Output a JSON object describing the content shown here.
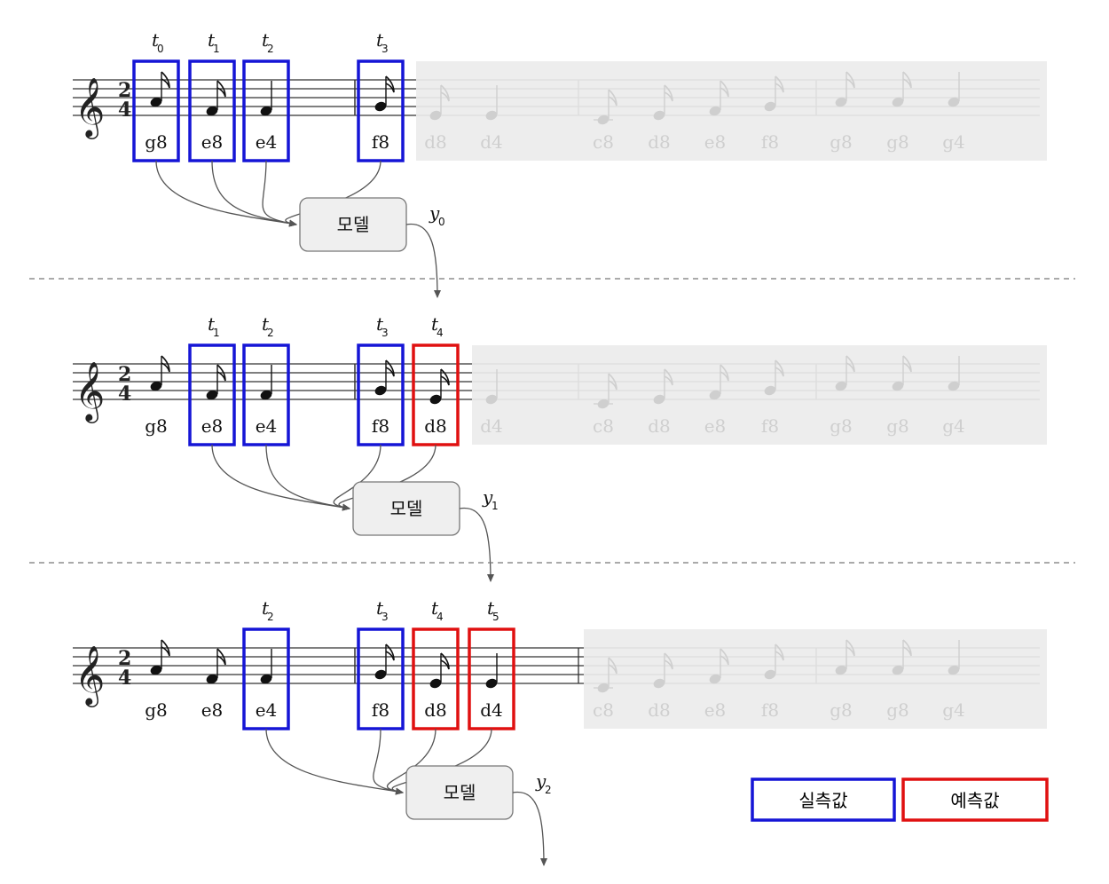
{
  "model_label": "모델",
  "legend": {
    "observed": {
      "label": "실측값",
      "color": "#1515d6"
    },
    "predicted": {
      "label": "예측값",
      "color": "#e01010"
    }
  },
  "notes": [
    {
      "label": "g8",
      "pitch": "g4",
      "dur": "8"
    },
    {
      "label": "e8",
      "pitch": "e4",
      "dur": "8"
    },
    {
      "label": "e4",
      "pitch": "e4",
      "dur": "4"
    },
    {
      "label": "f8",
      "pitch": "f4",
      "dur": "8"
    },
    {
      "label": "d8",
      "pitch": "d4",
      "dur": "8"
    },
    {
      "label": "d4",
      "pitch": "d4",
      "dur": "4"
    },
    {
      "label": "c8",
      "pitch": "c4",
      "dur": "8"
    },
    {
      "label": "d8",
      "pitch": "d4",
      "dur": "8"
    },
    {
      "label": "e8",
      "pitch": "e4",
      "dur": "8"
    },
    {
      "label": "f8",
      "pitch": "f4",
      "dur": "8"
    },
    {
      "label": "g8",
      "pitch": "g4",
      "dur": "8"
    },
    {
      "label": "g8",
      "pitch": "g4",
      "dur": "8"
    },
    {
      "label": "g4",
      "pitch": "g4",
      "dur": "4"
    }
  ],
  "time_signature": {
    "top": "2",
    "bottom": "4"
  },
  "steps": [
    {
      "windows": [
        {
          "note": 0,
          "t": "t",
          "sub": "0",
          "kind": "observed"
        },
        {
          "note": 1,
          "t": "t",
          "sub": "1",
          "kind": "observed"
        },
        {
          "note": 2,
          "t": "t",
          "sub": "2",
          "kind": "observed"
        },
        {
          "note": 3,
          "t": "t",
          "sub": "3",
          "kind": "observed"
        }
      ],
      "faded_from": 4,
      "output": {
        "y": "y",
        "sub": "0"
      }
    },
    {
      "windows": [
        {
          "note": 1,
          "t": "t",
          "sub": "1",
          "kind": "observed"
        },
        {
          "note": 2,
          "t": "t",
          "sub": "2",
          "kind": "observed"
        },
        {
          "note": 3,
          "t": "t",
          "sub": "3",
          "kind": "observed"
        },
        {
          "note": 4,
          "t": "t",
          "sub": "4",
          "kind": "predicted"
        }
      ],
      "faded_from": 5,
      "output": {
        "y": "y",
        "sub": "1"
      }
    },
    {
      "windows": [
        {
          "note": 2,
          "t": "t",
          "sub": "2",
          "kind": "observed"
        },
        {
          "note": 3,
          "t": "t",
          "sub": "3",
          "kind": "observed"
        },
        {
          "note": 4,
          "t": "t",
          "sub": "4",
          "kind": "predicted"
        },
        {
          "note": 5,
          "t": "t",
          "sub": "5",
          "kind": "predicted"
        }
      ],
      "faded_from": 6,
      "output": {
        "y": "y",
        "sub": "2"
      }
    }
  ]
}
